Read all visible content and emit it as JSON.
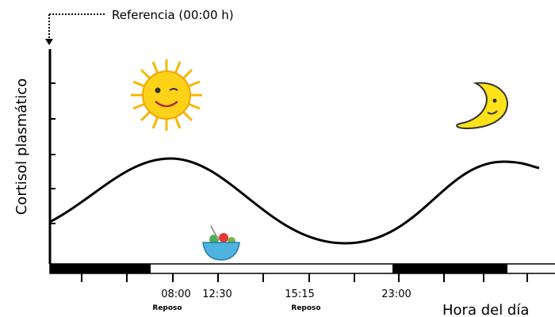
{
  "reference": "Referencia (00:00 h)",
  "y_axis_label": "Cortisol plasmático",
  "x_axis_label": "Hora del día",
  "time_labels": [
    "08:00",
    "12:30",
    "15:15",
    "23:00"
  ],
  "notes": [
    "Reposo",
    "Reposo"
  ]
}
